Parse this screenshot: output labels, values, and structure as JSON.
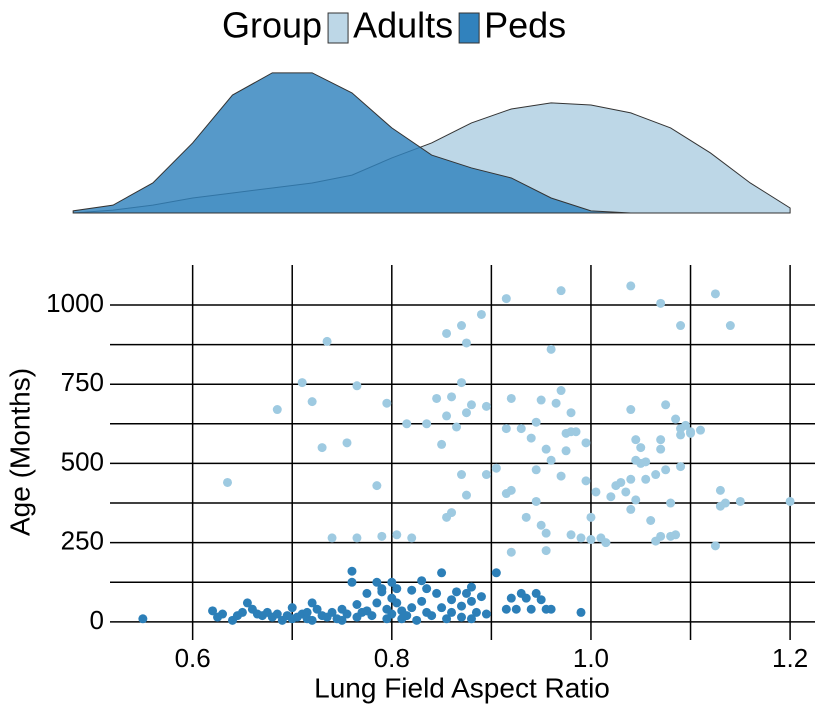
{
  "chart_data": [
    {
      "type": "area",
      "legend_title": "Group",
      "legend": "top",
      "x": [
        0.48,
        0.52,
        0.56,
        0.6,
        0.64,
        0.68,
        0.72,
        0.76,
        0.8,
        0.84,
        0.88,
        0.92,
        0.96,
        1.0,
        1.04,
        1.08,
        1.12,
        1.16,
        1.2
      ],
      "xlim": [
        0.517,
        1.225
      ],
      "ylim": [
        0,
        4
      ],
      "series": [
        {
          "name": "Adults",
          "color": "#bdd7e7",
          "values": [
            0,
            0.08,
            0.22,
            0.42,
            0.56,
            0.7,
            0.84,
            1.06,
            1.54,
            1.96,
            2.52,
            2.91,
            3.08,
            3.02,
            2.8,
            2.38,
            1.68,
            0.84,
            0.14
          ]
        },
        {
          "name": "Peds",
          "color": "#3182bd",
          "values": [
            0.06,
            0.22,
            0.84,
            1.96,
            3.3,
            3.92,
            3.92,
            3.36,
            2.38,
            1.62,
            1.26,
            0.98,
            0.42,
            0.06,
            0,
            0,
            0,
            0,
            0
          ]
        }
      ]
    },
    {
      "type": "scatter",
      "xlabel": "Lung Field Aspect Ratio",
      "ylabel": "Age (Months)",
      "xlim": [
        0.517,
        1.225
      ],
      "ylim": [
        -57,
        1126
      ],
      "xticks": [
        0.6,
        0.8,
        {
          "value": 1,
          "label": "1.0"
        },
        1.2
      ],
      "yticks": [
        0,
        250,
        500,
        750,
        1000
      ],
      "minor_xticks": [
        0.7,
        0.9,
        1.1
      ],
      "minor_yticks": [
        125,
        375,
        625,
        875
      ],
      "grid": true,
      "series": [
        {
          "color": "#9ecae1",
          "x": [
            0.635,
            0.685,
            0.71,
            0.72,
            0.73,
            0.735,
            0.74,
            0.755,
            0.765,
            0.765,
            0.785,
            0.795,
            0.79,
            0.805,
            0.815,
            0.82,
            0.835,
            0.845,
            0.85,
            0.855,
            0.855,
            0.86,
            0.865,
            0.86,
            0.855,
            0.87,
            0.87,
            0.875,
            0.875,
            0.87,
            0.875,
            0.88,
            0.89,
            0.895,
            0.895,
            0.905,
            0.915,
            0.915,
            0.92,
            0.915,
            0.92,
            0.93,
            0.935,
            0.92,
            0.94,
            0.945,
            0.945,
            0.945,
            0.95,
            0.95,
            0.955,
            0.955,
            0.955,
            0.96,
            0.96,
            0.965,
            0.97,
            0.97,
            0.97,
            0.975,
            0.975,
            0.98,
            0.98,
            0.98,
            0.985,
            0.99,
            0.995,
            0.995,
            1.0,
            1.0,
            1.005,
            1.01,
            1.015,
            1.02,
            1.025,
            1.03,
            1.035,
            1.04,
            1.04,
            1.045,
            1.045,
            1.045,
            1.05,
            1.05,
            1.055,
            1.055,
            1.06,
            1.04,
            1.04,
            1.065,
            1.07,
            1.065,
            1.07,
            1.075,
            1.07,
            1.075,
            1.08,
            1.085,
            1.09,
            1.09,
            1.09,
            1.09,
            1.095,
            1.1,
            1.1,
            1.11,
            1.125,
            1.125,
            1.13,
            1.13,
            1.135,
            1.14,
            1.15,
            1.2,
            1.08,
            1.085,
            1.07
          ],
          "values": [
            440,
            670,
            755,
            695,
            550,
            885,
            265,
            565,
            745,
            265,
            430,
            690,
            270,
            275,
            625,
            265,
            625,
            705,
            560,
            650,
            910,
            710,
            615,
            345,
            330,
            935,
            465,
            880,
            660,
            755,
            400,
            685,
            970,
            465,
            680,
            485,
            1020,
            405,
            415,
            610,
            705,
            610,
            330,
            220,
            580,
            480,
            380,
            630,
            700,
            305,
            545,
            225,
            280,
            860,
            510,
            690,
            1045,
            460,
            730,
            595,
            540,
            660,
            600,
            275,
            600,
            265,
            445,
            565,
            260,
            330,
            410,
            265,
            250,
            395,
            430,
            440,
            410,
            450,
            355,
            575,
            510,
            385,
            500,
            550,
            505,
            450,
            320,
            670,
            1060,
            465,
            1005,
            255,
            575,
            685,
            545,
            480,
            270,
            275,
            935,
            490,
            590,
            610,
            620,
            595,
            600,
            605,
            1035,
            240,
            415,
            365,
            375,
            935,
            380,
            380,
            375,
            640,
            270
          ]
        },
        {
          "color": "#2c7fb8",
          "x": [
            0.55,
            0.62,
            0.625,
            0.63,
            0.64,
            0.645,
            0.65,
            0.655,
            0.66,
            0.665,
            0.67,
            0.675,
            0.68,
            0.685,
            0.69,
            0.695,
            0.7,
            0.7,
            0.705,
            0.71,
            0.715,
            0.715,
            0.72,
            0.72,
            0.725,
            0.73,
            0.735,
            0.74,
            0.745,
            0.75,
            0.75,
            0.755,
            0.76,
            0.76,
            0.765,
            0.765,
            0.77,
            0.775,
            0.775,
            0.78,
            0.785,
            0.785,
            0.79,
            0.79,
            0.795,
            0.795,
            0.8,
            0.8,
            0.8,
            0.805,
            0.805,
            0.81,
            0.81,
            0.815,
            0.82,
            0.82,
            0.825,
            0.83,
            0.83,
            0.835,
            0.835,
            0.84,
            0.845,
            0.85,
            0.85,
            0.855,
            0.86,
            0.86,
            0.865,
            0.87,
            0.87,
            0.875,
            0.88,
            0.88,
            0.885,
            0.89,
            0.895,
            0.905,
            0.915,
            0.92,
            0.925,
            0.93,
            0.935,
            0.94,
            0.945,
            0.95,
            0.955,
            0.96,
            0.99,
            0.88
          ],
          "values": [
            10,
            35,
            15,
            25,
            5,
            20,
            30,
            60,
            40,
            25,
            20,
            30,
            15,
            25,
            5,
            20,
            10,
            45,
            15,
            25,
            30,
            10,
            60,
            5,
            40,
            20,
            15,
            30,
            10,
            40,
            5,
            25,
            160,
            125,
            55,
            15,
            30,
            90,
            35,
            20,
            125,
            60,
            105,
            95,
            40,
            10,
            125,
            75,
            25,
            105,
            60,
            35,
            10,
            20,
            100,
            45,
            5,
            130,
            65,
            105,
            30,
            20,
            90,
            155,
            45,
            10,
            70,
            30,
            95,
            50,
            15,
            90,
            110,
            65,
            30,
            80,
            25,
            155,
            40,
            75,
            40,
            90,
            75,
            40,
            90,
            70,
            40,
            40,
            30,
            10
          ]
        }
      ]
    }
  ]
}
